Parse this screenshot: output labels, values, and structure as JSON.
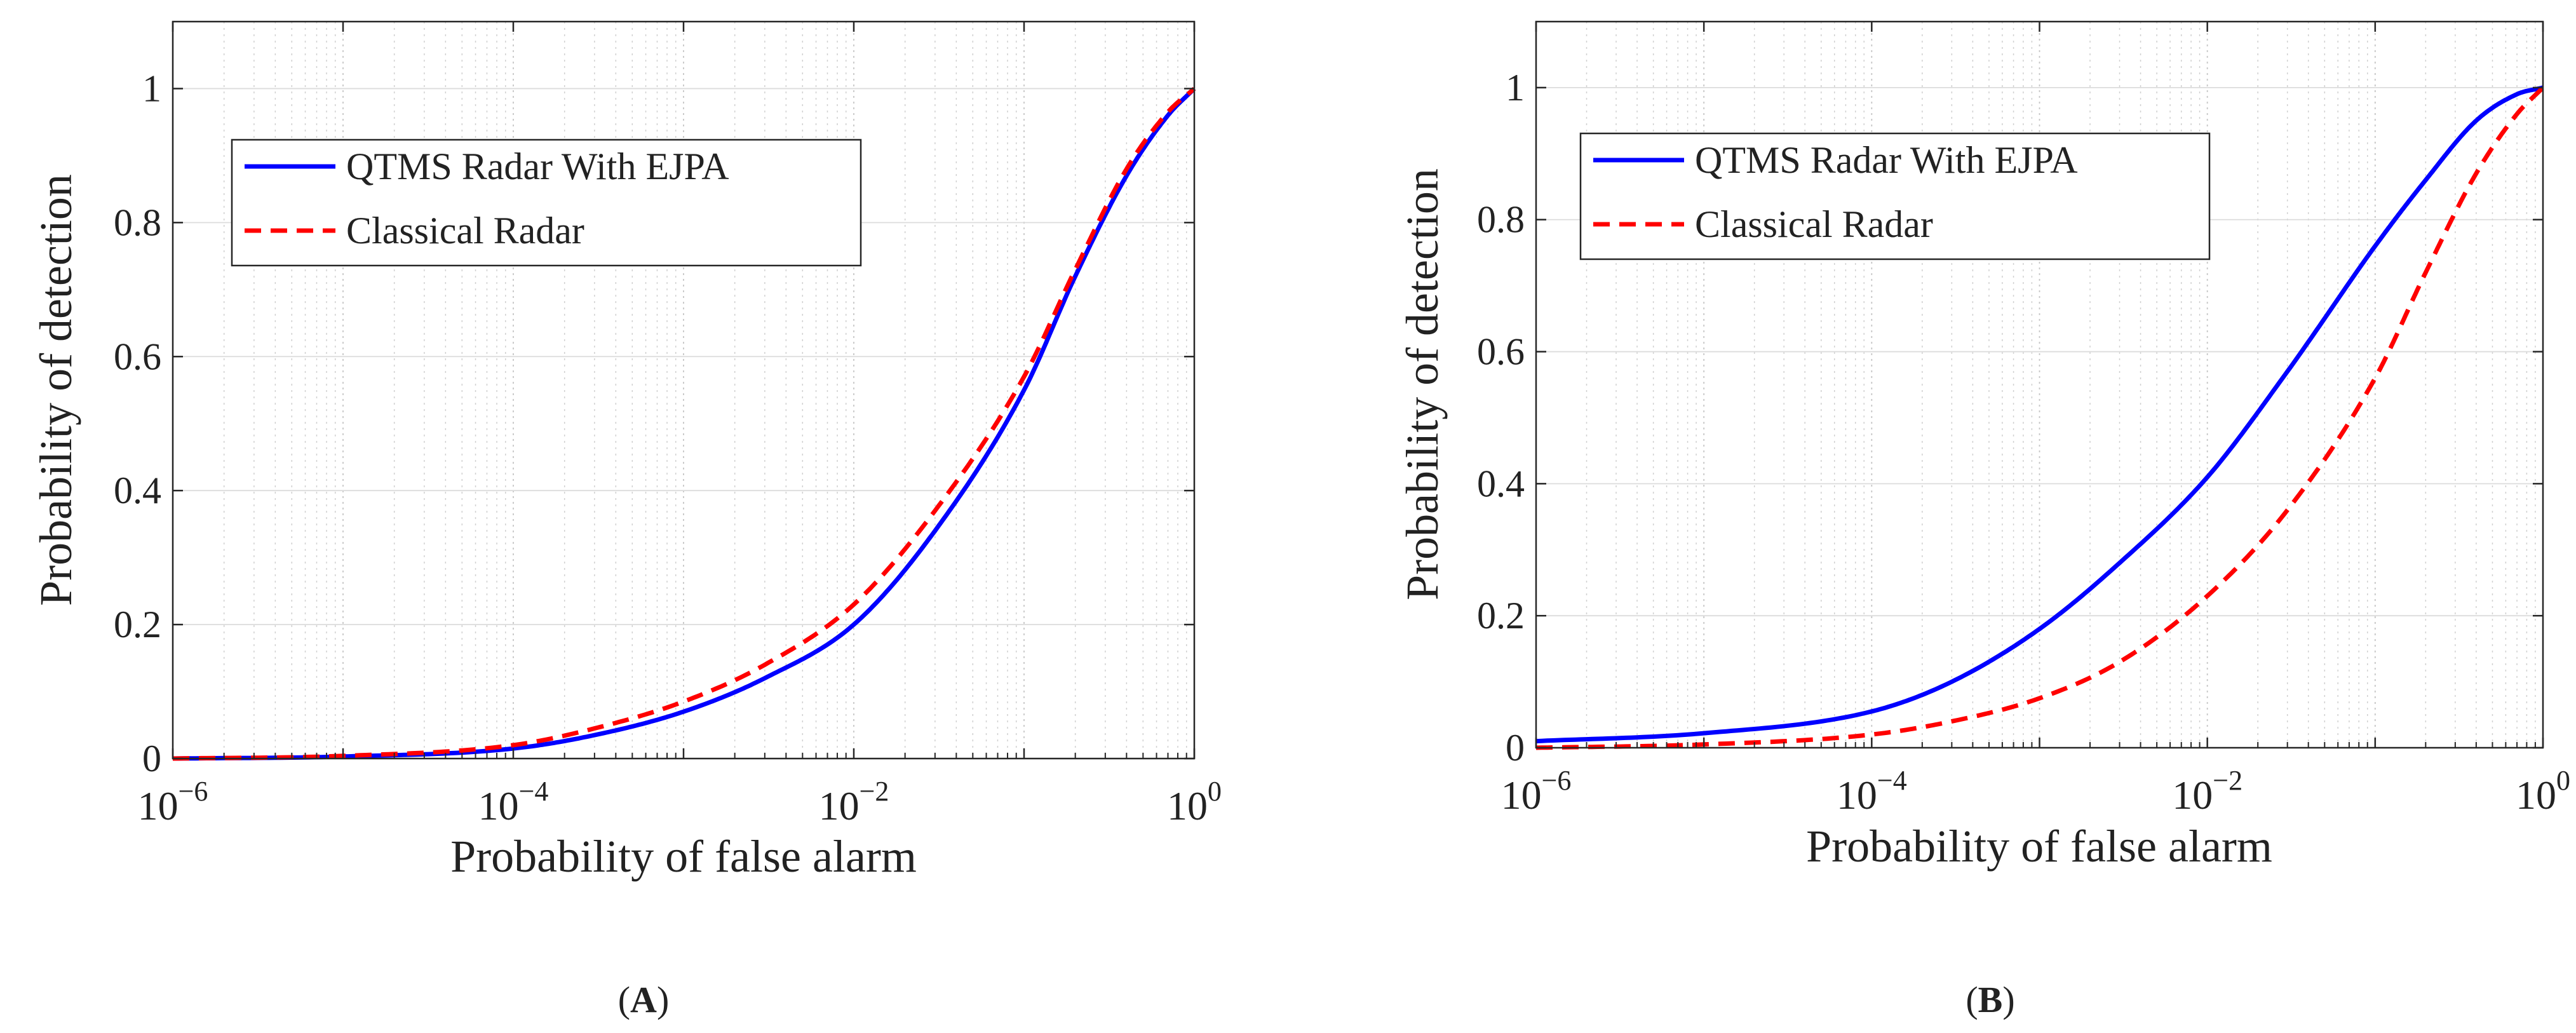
{
  "chart_data": [
    {
      "type": "line",
      "panel_label": "A",
      "xscale": "log",
      "xlabel": "Probability of false alarm",
      "ylabel": "Probability of detection",
      "xlim": [
        1e-06,
        1
      ],
      "ylim": [
        0,
        1.1
      ],
      "xticks": [
        {
          "value": 1e-06,
          "base": "10",
          "exp": "−6"
        },
        {
          "value": 0.0001,
          "base": "10",
          "exp": "−4"
        },
        {
          "value": 0.01,
          "base": "10",
          "exp": "−2"
        },
        {
          "value": 1,
          "base": "10",
          "exp": "0"
        }
      ],
      "yticks": [
        {
          "value": 0,
          "label": "0"
        },
        {
          "value": 0.2,
          "label": "0.2"
        },
        {
          "value": 0.4,
          "label": "0.4"
        },
        {
          "value": 0.6,
          "label": "0.6"
        },
        {
          "value": 0.8,
          "label": "0.8"
        },
        {
          "value": 1,
          "label": "1"
        }
      ],
      "grid": true,
      "legend_position": "top-left",
      "series": [
        {
          "name": "QTMS Radar With EJPA",
          "color": "#0000ff",
          "dash": "solid",
          "x": [
            1e-06,
            1e-05,
            0.0001,
            0.0003,
            0.001,
            0.003,
            0.01,
            0.03,
            0.1,
            0.2,
            0.4,
            0.7,
            1
          ],
          "y": [
            0.0,
            0.003,
            0.015,
            0.035,
            0.07,
            0.12,
            0.2,
            0.34,
            0.55,
            0.72,
            0.87,
            0.96,
            1.0
          ]
        },
        {
          "name": "Classical Radar",
          "color": "#ff0000",
          "dash": "dashed",
          "x": [
            1e-06,
            1e-05,
            0.0001,
            0.0003,
            0.001,
            0.003,
            0.01,
            0.03,
            0.1,
            0.2,
            0.4,
            0.7,
            1
          ],
          "y": [
            0.0,
            0.004,
            0.02,
            0.045,
            0.085,
            0.14,
            0.23,
            0.37,
            0.57,
            0.73,
            0.88,
            0.965,
            1.0
          ]
        }
      ]
    },
    {
      "type": "line",
      "panel_label": "B",
      "xscale": "log",
      "xlabel": "Probability of false alarm",
      "ylabel": "Probability of detection",
      "xlim": [
        1e-06,
        1
      ],
      "ylim": [
        0,
        1.1
      ],
      "xticks": [
        {
          "value": 1e-06,
          "base": "10",
          "exp": "−6"
        },
        {
          "value": 0.0001,
          "base": "10",
          "exp": "−4"
        },
        {
          "value": 0.01,
          "base": "10",
          "exp": "−2"
        },
        {
          "value": 1,
          "base": "10",
          "exp": "0"
        }
      ],
      "yticks": [
        {
          "value": 0,
          "label": "0"
        },
        {
          "value": 0.2,
          "label": "0.2"
        },
        {
          "value": 0.4,
          "label": "0.4"
        },
        {
          "value": 0.6,
          "label": "0.6"
        },
        {
          "value": 0.8,
          "label": "0.8"
        },
        {
          "value": 1,
          "label": "1"
        }
      ],
      "grid": true,
      "legend_position": "top-left",
      "series": [
        {
          "name": "QTMS Radar With EJPA",
          "color": "#0000ff",
          "dash": "solid",
          "x": [
            1e-06,
            1e-05,
            0.0001,
            0.0003,
            0.001,
            0.003,
            0.01,
            0.03,
            0.1,
            0.2,
            0.4,
            0.7,
            1
          ],
          "y": [
            0.01,
            0.022,
            0.055,
            0.1,
            0.18,
            0.28,
            0.41,
            0.57,
            0.76,
            0.86,
            0.95,
            0.99,
            1.0
          ]
        },
        {
          "name": "Classical Radar",
          "color": "#ff0000",
          "dash": "dashed",
          "x": [
            1e-06,
            1e-05,
            0.0001,
            0.0003,
            0.001,
            0.003,
            0.01,
            0.03,
            0.1,
            0.2,
            0.4,
            0.7,
            1
          ],
          "y": [
            0.0,
            0.005,
            0.02,
            0.04,
            0.075,
            0.13,
            0.23,
            0.36,
            0.56,
            0.72,
            0.87,
            0.96,
            1.0
          ]
        }
      ]
    }
  ]
}
